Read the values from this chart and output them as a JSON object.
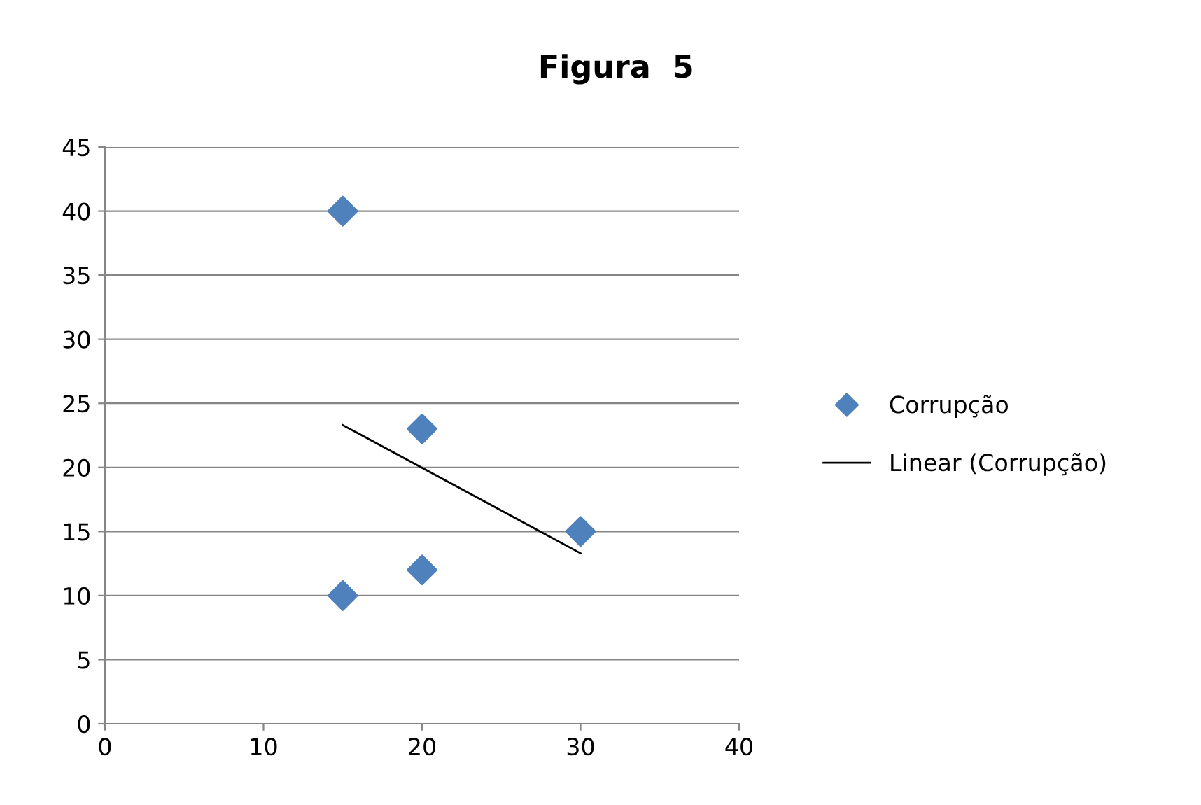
{
  "chart_data": {
    "type": "scatter",
    "title": "Figura  5",
    "series": [
      {
        "name": "Corrupção",
        "color": "#4f81bd",
        "marker": "diamond",
        "x": [
          15,
          20,
          20,
          15,
          30
        ],
        "values": [
          40,
          23,
          12,
          10,
          15
        ]
      },
      {
        "name": "Linear (Corrupção)",
        "type": "line",
        "color": "#000000",
        "marker": "none",
        "line_style": "solid",
        "x": [
          15,
          30
        ],
        "values": [
          23.3,
          13.3
        ]
      }
    ],
    "xlim": [
      0,
      40
    ],
    "xticks": [
      0,
      10,
      20,
      30,
      40
    ],
    "ylim": [
      0,
      45
    ],
    "yticks": [
      0,
      5,
      10,
      15,
      20,
      25,
      30,
      35,
      40,
      45
    ],
    "grid": "y",
    "legend": "right"
  }
}
